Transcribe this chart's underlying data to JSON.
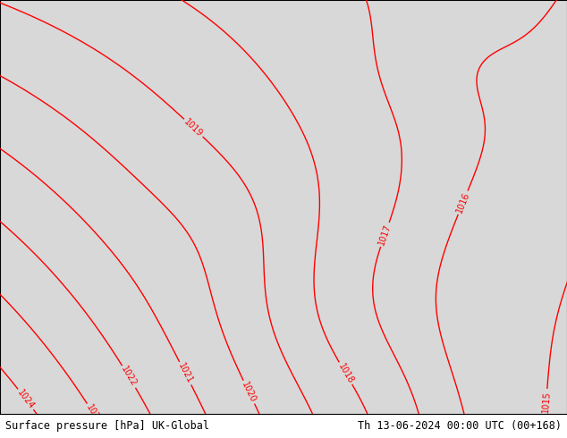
{
  "title_left": "Surface pressure [hPa] UK-Global",
  "title_right": "Th 13-06-2024 00:00 UTC (00+168)",
  "land_color": "#aae89a",
  "sea_color": "#d8d8d8",
  "contour_color": "#ff0000",
  "coast_color": "#888888",
  "border_color": "#888888",
  "label_fontsize": 7,
  "title_fontsize": 8.5,
  "fig_width": 6.34,
  "fig_height": 4.9,
  "dpi": 100,
  "contour_linewidth": 1.0,
  "lon_min": -11.0,
  "lon_max": 10.5,
  "lat_min": 47.5,
  "lat_max": 62.5
}
